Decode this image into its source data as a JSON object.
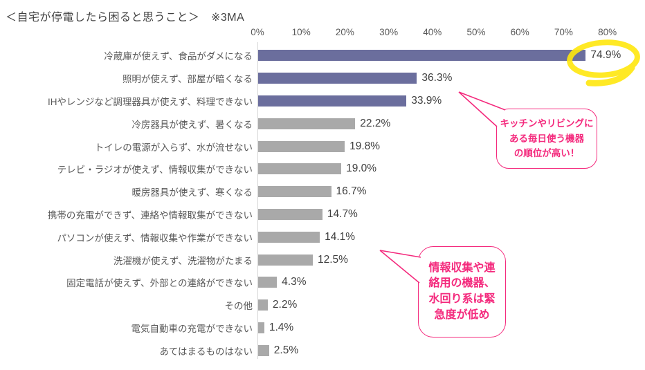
{
  "chart_data": {
    "type": "bar",
    "orientation": "horizontal",
    "title": "＜自宅が停電したら困ると思うこと＞　※3MA",
    "categories": [
      "冷蔵庫が使えず、食品がダメになる",
      "照明が使えず、部屋が暗くなる",
      "IHやレンジなど調理器具が使えず、料理できない",
      "冷房器具が使えず、暑くなる",
      "トイレの電源が入らず、水が流せない",
      "テレビ・ラジオが使えず、情報収集ができない",
      "暖房器具が使えず、寒くなる",
      "携帯の充電ができず、連絡や情報取集ができない",
      "パソコンが使えず、情報収集や作業ができない",
      "洗濯機が使えず、洗濯物がたまる",
      "固定電話が使えず、外部との連絡ができない",
      "その他",
      "電気自動車の充電ができない",
      "あてはまるものはない"
    ],
    "values": [
      74.9,
      36.3,
      33.9,
      22.2,
      19.8,
      19.0,
      16.7,
      14.7,
      14.1,
      12.5,
      4.3,
      2.2,
      1.4,
      2.5
    ],
    "value_labels": [
      "74.9%",
      "36.3%",
      "33.9%",
      "22.2%",
      "19.8%",
      "19.0%",
      "16.7%",
      "14.7%",
      "14.1%",
      "12.5%",
      "4.3%",
      "2.2%",
      "1.4%",
      "2.5%"
    ],
    "axis": {
      "ticks": [
        "0%",
        "10%",
        "20%",
        "30%",
        "40%",
        "50%",
        "60%",
        "70%",
        "80%"
      ],
      "min": 0,
      "max": 80,
      "grid": false,
      "position": "top"
    },
    "highlighted_top_bars": 3,
    "colors": {
      "highlight_bar": "#6B6E9D",
      "default_bar": "#A9A9A9",
      "axis_text": "#595959",
      "label_text": "#595959",
      "value_text": "#3F3F3F"
    },
    "legend": null
  },
  "annotations": {
    "top_bubble": {
      "text": "キッチンやリビングに\nある毎日使う機器\nの順位が高い！",
      "color": "#F42A7D",
      "points_to": "top 3 bars"
    },
    "bottom_bubble": {
      "text": "情報収集や連\n絡用の機器、\n水回り系は緊\n急度が低め",
      "color": "#F42A7D",
      "points_to": "middle bars"
    },
    "highlight_marker": {
      "type": "hand-drawn-ellipse",
      "color": "#FFE70D",
      "around_value": "74.9%"
    }
  }
}
